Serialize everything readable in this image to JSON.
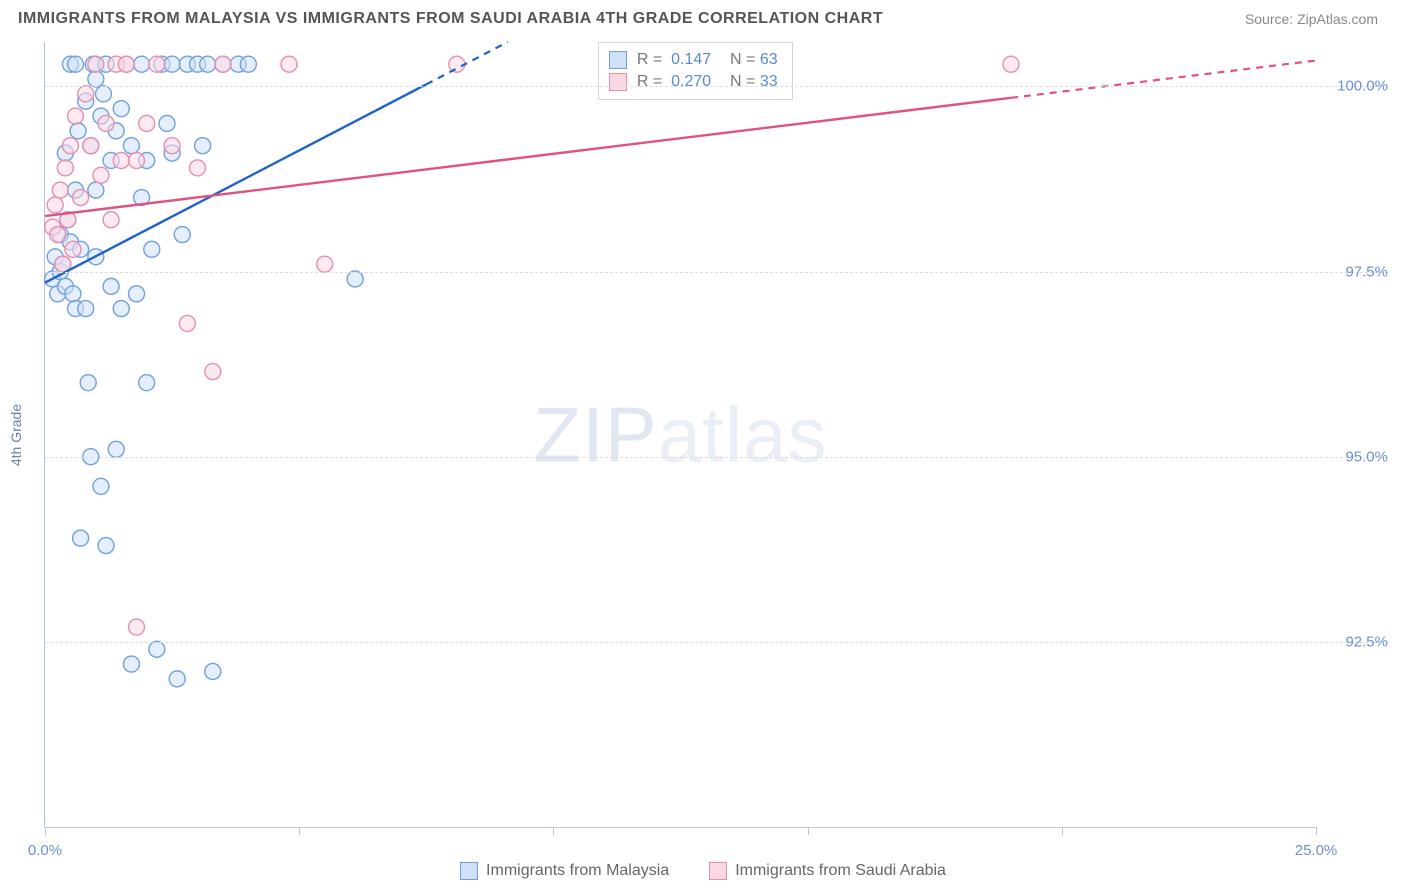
{
  "title": "IMMIGRANTS FROM MALAYSIA VS IMMIGRANTS FROM SAUDI ARABIA 4TH GRADE CORRELATION CHART",
  "source": "Source: ZipAtlas.com",
  "y_axis_label": "4th Grade",
  "watermark_a": "ZIP",
  "watermark_b": "atlas",
  "chart": {
    "type": "scatter",
    "xlim": [
      0,
      25
    ],
    "ylim": [
      90,
      100.6
    ],
    "x_ticks": [
      0,
      5,
      10,
      15,
      20,
      25
    ],
    "x_tick_labels": {
      "0": "0.0%",
      "25": "25.0%"
    },
    "y_grid": [
      92.5,
      95.0,
      97.5,
      100.0
    ],
    "y_tick_labels": [
      "92.5%",
      "95.0%",
      "97.5%",
      "100.0%"
    ],
    "background_color": "#ffffff",
    "grid_color": "#d9dde4",
    "axis_color": "#b9c4d8",
    "tick_label_color": "#6b8fd6",
    "marker_radius": 8,
    "marker_stroke_width": 1.4,
    "series": [
      {
        "name": "Immigrants from Malaysia",
        "fill": "#cfe0f7",
        "stroke": "#6fa0e0",
        "line_color": "#1f62c9",
        "line_solid_xmax": 7.5,
        "R": "0.147",
        "N": "63",
        "trend": {
          "x1": 0,
          "y1": 97.35,
          "x2": 9.1,
          "y2": 100.6
        },
        "points": [
          [
            0.15,
            97.4
          ],
          [
            0.2,
            97.7
          ],
          [
            0.25,
            97.2
          ],
          [
            0.3,
            98.0
          ],
          [
            0.3,
            97.5
          ],
          [
            0.35,
            97.6
          ],
          [
            0.4,
            97.3
          ],
          [
            0.4,
            99.1
          ],
          [
            0.45,
            98.2
          ],
          [
            0.5,
            97.9
          ],
          [
            0.5,
            100.3
          ],
          [
            0.55,
            97.2
          ],
          [
            0.6,
            98.6
          ],
          [
            0.6,
            97.0
          ],
          [
            0.65,
            99.4
          ],
          [
            0.7,
            97.8
          ],
          [
            0.7,
            93.9
          ],
          [
            0.8,
            97.0
          ],
          [
            0.8,
            99.8
          ],
          [
            0.85,
            96.0
          ],
          [
            0.9,
            99.2
          ],
          [
            0.9,
            95.0
          ],
          [
            0.95,
            100.3
          ],
          [
            1.0,
            97.7
          ],
          [
            1.0,
            98.6
          ],
          [
            1.1,
            94.6
          ],
          [
            1.1,
            99.6
          ],
          [
            1.15,
            99.9
          ],
          [
            1.2,
            100.3
          ],
          [
            1.2,
            93.8
          ],
          [
            1.3,
            97.3
          ],
          [
            1.3,
            99.0
          ],
          [
            1.4,
            95.1
          ],
          [
            1.4,
            99.4
          ],
          [
            1.5,
            99.7
          ],
          [
            1.5,
            97.0
          ],
          [
            1.6,
            100.3
          ],
          [
            1.7,
            99.2
          ],
          [
            1.7,
            92.2
          ],
          [
            1.8,
            97.2
          ],
          [
            1.9,
            98.5
          ],
          [
            1.9,
            100.3
          ],
          [
            2.0,
            96.0
          ],
          [
            2.0,
            99.0
          ],
          [
            2.1,
            97.8
          ],
          [
            2.2,
            92.4
          ],
          [
            2.3,
            100.3
          ],
          [
            2.4,
            99.5
          ],
          [
            2.5,
            100.3
          ],
          [
            2.5,
            99.1
          ],
          [
            2.6,
            92.0
          ],
          [
            2.7,
            98.0
          ],
          [
            2.8,
            100.3
          ],
          [
            3.0,
            100.3
          ],
          [
            3.1,
            99.2
          ],
          [
            3.2,
            100.3
          ],
          [
            3.3,
            92.1
          ],
          [
            3.5,
            100.3
          ],
          [
            3.8,
            100.3
          ],
          [
            4.0,
            100.3
          ],
          [
            6.1,
            97.4
          ],
          [
            1.0,
            100.1
          ],
          [
            0.6,
            100.3
          ]
        ]
      },
      {
        "name": "Immigrants from Saudi Arabia",
        "fill": "#fbd8e3",
        "stroke": "#e48fb0",
        "line_color": "#e0527f",
        "line_solid_xmax": 19.0,
        "R": "0.270",
        "N": "33",
        "trend": {
          "x1": 0,
          "y1": 98.25,
          "x2": 25,
          "y2": 100.35
        },
        "points": [
          [
            0.15,
            98.1
          ],
          [
            0.2,
            98.4
          ],
          [
            0.25,
            98.0
          ],
          [
            0.3,
            98.6
          ],
          [
            0.35,
            97.6
          ],
          [
            0.4,
            98.9
          ],
          [
            0.45,
            98.2
          ],
          [
            0.5,
            99.2
          ],
          [
            0.55,
            97.8
          ],
          [
            0.6,
            99.6
          ],
          [
            0.7,
            98.5
          ],
          [
            0.8,
            99.9
          ],
          [
            0.9,
            99.2
          ],
          [
            1.0,
            100.3
          ],
          [
            1.1,
            98.8
          ],
          [
            1.2,
            99.5
          ],
          [
            1.3,
            98.2
          ],
          [
            1.4,
            100.3
          ],
          [
            1.5,
            99.0
          ],
          [
            1.6,
            100.3
          ],
          [
            1.8,
            99.0
          ],
          [
            1.8,
            92.7
          ],
          [
            2.0,
            99.5
          ],
          [
            2.2,
            100.3
          ],
          [
            2.5,
            99.2
          ],
          [
            2.8,
            96.8
          ],
          [
            3.0,
            98.9
          ],
          [
            3.3,
            96.15
          ],
          [
            3.5,
            100.3
          ],
          [
            4.8,
            100.3
          ],
          [
            5.5,
            97.6
          ],
          [
            8.1,
            100.3
          ],
          [
            19.0,
            100.3
          ]
        ]
      }
    ]
  },
  "stats_box": {
    "left_pct": 43.5,
    "top_pct": 0
  },
  "legend_labels": {
    "R_prefix": "R",
    "N_prefix": "N",
    "eq": "="
  }
}
